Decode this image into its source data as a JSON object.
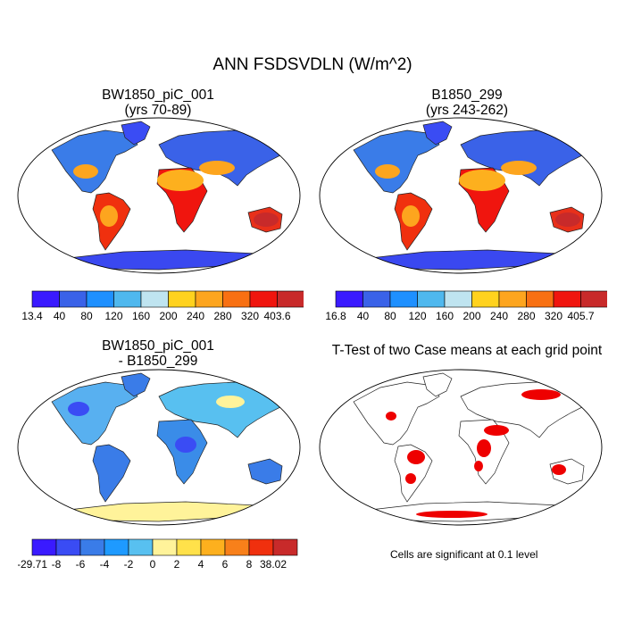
{
  "figure": {
    "title": "ANN FSDSVDLN (W/m^2)"
  },
  "panels": [
    {
      "id": "case",
      "title_line1": "BW1850_piC_001",
      "title_line2": "(yrs 70-89)",
      "colorbar_labels": [
        "13.4",
        "40",
        "80",
        "120",
        "160",
        "200",
        "240",
        "280",
        "320",
        "403.6"
      ],
      "colorbar_colors": [
        "#3a1aff",
        "#3a62e8",
        "#1e90ff",
        "#4fb8ee",
        "#bfe4f0",
        "#ffd21e",
        "#fda51e",
        "#f87012",
        "#f0150e",
        "#c82a2a"
      ]
    },
    {
      "id": "control",
      "title_line1": "B1850_299",
      "title_line2": "(yrs 243-262)",
      "colorbar_labels": [
        "16.8",
        "40",
        "80",
        "120",
        "160",
        "200",
        "240",
        "280",
        "320",
        "405.7"
      ],
      "colorbar_colors": [
        "#3a1aff",
        "#3a62e8",
        "#1e90ff",
        "#4fb8ee",
        "#bfe4f0",
        "#ffd21e",
        "#fda51e",
        "#f87012",
        "#f0150e",
        "#c82a2a"
      ]
    },
    {
      "id": "difference",
      "title_line1": "BW1850_piC_001",
      "title_line2": "- B1850_299",
      "colorbar_labels": [
        "-29.71",
        "-8",
        "-6",
        "-4",
        "-2",
        "0",
        "2",
        "4",
        "6",
        "8",
        "38.02"
      ],
      "colorbar_colors": [
        "#3a1aff",
        "#3a4cf4",
        "#3a7ce8",
        "#1e9aff",
        "#58c0f0",
        "#fff39a",
        "#ffe14a",
        "#fdb01e",
        "#f8801a",
        "#f0300e",
        "#c82a2a"
      ]
    },
    {
      "id": "ttest",
      "title_line1": "T-Test of two Case means at each grid point",
      "note": "Cells are significant at 0.1 level",
      "significant_color": "#ee0000"
    }
  ]
}
